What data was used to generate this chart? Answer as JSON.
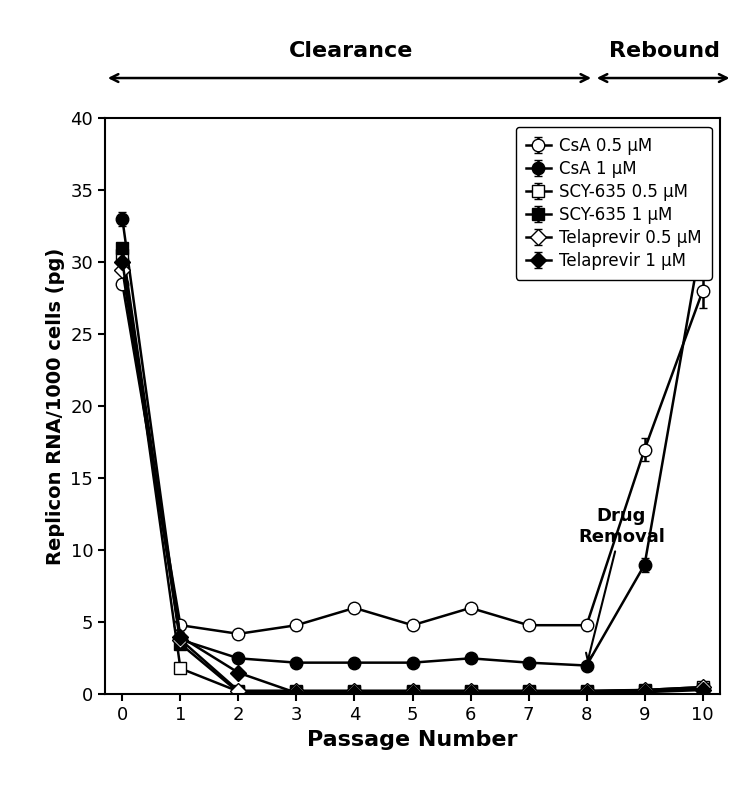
{
  "passages": [
    0,
    1,
    2,
    3,
    4,
    5,
    6,
    7,
    8,
    9,
    10
  ],
  "CsA_0.5": [
    28.5,
    4.8,
    4.2,
    4.8,
    6.0,
    4.8,
    6.0,
    4.8,
    4.8,
    17.0,
    28.0
  ],
  "CsA_0.5_err": [
    0,
    0.3,
    0.2,
    0.3,
    0.3,
    0.2,
    0.3,
    0.3,
    0.3,
    0.8,
    1.2
  ],
  "CsA_1": [
    33.0,
    3.8,
    2.5,
    2.2,
    2.2,
    2.2,
    2.5,
    2.2,
    2.0,
    9.0,
    32.0
  ],
  "CsA_1_err": [
    0.5,
    0.2,
    0.1,
    0.1,
    0.1,
    0.1,
    0.1,
    0.1,
    0.1,
    0.5,
    1.5
  ],
  "SCY_0.5": [
    30.5,
    1.8,
    0.2,
    0.2,
    0.2,
    0.2,
    0.2,
    0.2,
    0.2,
    0.3,
    0.5
  ],
  "SCY_0.5_err": [
    0,
    0.2,
    0.05,
    0.05,
    0.05,
    0.05,
    0.05,
    0.05,
    0.05,
    0.05,
    0.1
  ],
  "SCY_1": [
    31.0,
    3.5,
    0.15,
    0.15,
    0.15,
    0.15,
    0.15,
    0.15,
    0.15,
    0.2,
    0.4
  ],
  "SCY_1_err": [
    0,
    0.2,
    0.05,
    0.05,
    0.05,
    0.05,
    0.05,
    0.05,
    0.05,
    0.05,
    0.1
  ],
  "Tel_0.5": [
    29.5,
    3.8,
    0.25,
    0.25,
    0.25,
    0.25,
    0.25,
    0.25,
    0.25,
    0.3,
    0.5
  ],
  "Tel_0.5_err": [
    0,
    0.3,
    0.05,
    0.05,
    0.05,
    0.05,
    0.05,
    0.05,
    0.05,
    0.05,
    0.1
  ],
  "Tel_1": [
    30.0,
    4.0,
    1.5,
    0.1,
    0.1,
    0.1,
    0.1,
    0.1,
    0.1,
    0.15,
    0.3
  ],
  "Tel_1_err": [
    0,
    0.3,
    0.1,
    0.05,
    0.05,
    0.05,
    0.05,
    0.05,
    0.05,
    0.05,
    0.1
  ],
  "ylabel": "Replicon RNA/1000 cells (pg)",
  "xlabel": "Passage Number",
  "ylim": [
    0,
    40
  ],
  "yticks": [
    0,
    5,
    10,
    15,
    20,
    25,
    30,
    35,
    40
  ],
  "clearance_label": "Clearance",
  "rebound_label": "Rebound",
  "drug_removal_label": "Drug\nRemoval",
  "legend_labels": [
    "CsA 0.5 μM",
    "CsA 1 μM",
    "SCY-635 0.5 μM",
    "SCY-635 1 μM",
    "Telaprevir 0.5 μM",
    "Telaprevir 1 μM"
  ]
}
